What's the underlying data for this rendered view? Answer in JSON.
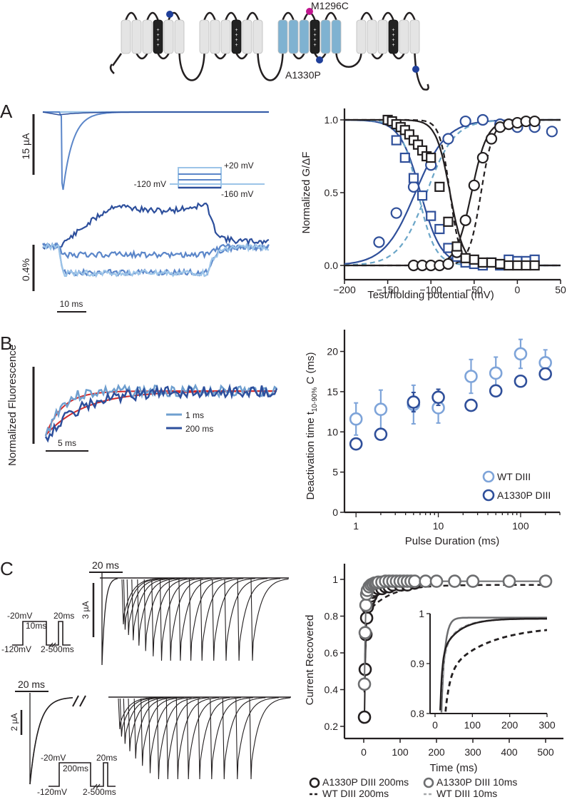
{
  "figure": {
    "panel_labels": [
      "A",
      "B",
      "C"
    ],
    "schematic": {
      "mutation_labels": [
        "M1296C",
        "A1330P"
      ],
      "colors": {
        "helix_gray": "#e4e4e4",
        "helix_blue": "#7fb2d1",
        "s4": "#222222",
        "site_blue": "#1f3f9a",
        "site_magenta": "#c0168e"
      }
    },
    "colors": {
      "light_blue": "#9cc4e8",
      "mid_blue": "#5b86c9",
      "dark_blue": "#2d4f9c",
      "teal_dash": "#6ba6c8",
      "black": "#231f20",
      "gray": "#6d6e70",
      "light_gray_dash": "#a7a9ac",
      "red_fit": "#d12a2a",
      "wt_light": "#7ea4d9",
      "a1330p_dark": "#2f4f9a"
    }
  },
  "panel_a_traces": {
    "current_scale": "15 µA",
    "fluor_scale": "0.4%",
    "time_scale": "10 ms",
    "protocol": {
      "hold": "-120 mV",
      "top": "+20 mV",
      "bottom": "-160 mV"
    }
  },
  "panel_b_traces": {
    "ylabel": "Normalized Fluorescence",
    "time_scale": "5 ms",
    "legend": [
      "1 ms",
      "200 ms"
    ]
  },
  "panel_c_traces": {
    "top": {
      "time_scale": "20 ms",
      "current_scale": "3 µA",
      "protocol": {
        "step": "-20mV",
        "step_dur": "10ms",
        "test_dur": "20ms",
        "hold": "-120mV",
        "interval": "2-500ms"
      }
    },
    "bottom": {
      "time_scale": "20 ms",
      "current_scale": "2 µA",
      "protocol": {
        "step": "-20mV",
        "step_dur": "200ms",
        "test_dur": "20ms",
        "hold": "-120mV",
        "interval": "2-500ms"
      }
    }
  },
  "chart_data": [
    {
      "id": "A-gv",
      "type": "scatter",
      "title": "",
      "xlabel": "Test/holding potential (mV)",
      "ylabel": "Normalized G/ΔF",
      "xlim": [
        -200,
        50
      ],
      "ylim": [
        0,
        1.0
      ],
      "xticks": [
        -200,
        -150,
        -100,
        -50,
        0,
        50
      ],
      "xtick_labels": [
        "−200",
        "−150",
        "−100",
        "−50",
        "0",
        "50"
      ],
      "yticks": [
        0,
        0.5,
        1.0
      ],
      "ytick_labels": [
        "0.0",
        "0.5",
        "1.0"
      ],
      "series": [
        {
          "name": "Fluorescence activation (A1330P DIII)",
          "marker": "circle",
          "color": "#2f4f9a",
          "x": [
            -160,
            -140,
            -120,
            -100,
            -80,
            -60,
            -40,
            -20,
            0,
            20,
            40
          ],
          "y": [
            0.16,
            0.36,
            0.54,
            0.69,
            0.87,
            0.99,
            1.0,
            0.97,
            0.95,
            0.95,
            0.92
          ]
        },
        {
          "name": "Fluorescence SSI (A1330P DIII)",
          "marker": "square",
          "color": "#2f4f9a",
          "x": [
            -140,
            -130,
            -120,
            -110,
            -100,
            -90,
            -80,
            -70,
            -60,
            -50,
            -40,
            -30,
            -20,
            -10,
            0,
            10,
            20
          ],
          "y": [
            0.86,
            0.74,
            0.6,
            0.48,
            0.34,
            0.25,
            0.12,
            0.06,
            0.02,
            0.01,
            0.0,
            0.02,
            0.0,
            0.04,
            0.03,
            0.03,
            0.04
          ]
        },
        {
          "name": "Conductance G-V",
          "marker": "circle",
          "color": "#231f20",
          "x": [
            -120,
            -110,
            -100,
            -90,
            -80,
            -70,
            -60,
            -50,
            -40,
            -30,
            -20,
            -10,
            0,
            10,
            20
          ],
          "y": [
            0.0,
            0.0,
            0.0,
            0.0,
            0.01,
            0.09,
            0.31,
            0.55,
            0.74,
            0.87,
            0.95,
            0.97,
            0.98,
            0.99,
            0.99
          ]
        },
        {
          "name": "Steady-state inactivation",
          "marker": "square",
          "color": "#231f20",
          "x": [
            -150,
            -145,
            -140,
            -135,
            -130,
            -125,
            -120,
            -115,
            -110,
            -105,
            -100,
            -90,
            -80,
            -70,
            -60,
            -50,
            -40,
            -30,
            -20,
            -10,
            0,
            10,
            20
          ],
          "y": [
            1.0,
            0.99,
            0.97,
            0.95,
            0.93,
            0.9,
            0.86,
            0.83,
            0.79,
            0.75,
            0.74,
            0.54,
            0.3,
            0.13,
            0.05,
            0.04,
            0.02,
            0.02,
            0.01,
            0.0,
            0.0,
            0.0,
            0.0
          ]
        }
      ],
      "fits": [
        {
          "name": "A1330P fluorescence activation fit",
          "style": "solid",
          "color": "#2f4f9a",
          "v_half": -118,
          "k": 18,
          "direction": "rising"
        },
        {
          "name": "A1330P fluorescence SSI fit",
          "style": "solid",
          "color": "#2f4f9a",
          "v_half": -112,
          "k": 12,
          "direction": "falling"
        },
        {
          "name": "WT fluorescence activation fit",
          "style": "dashed",
          "color": "#6ba6c8",
          "v_half": -105,
          "k": 16,
          "direction": "rising"
        },
        {
          "name": "WT fluorescence SSI fit",
          "style": "dashed",
          "color": "#6ba6c8",
          "v_half": -115,
          "k": 10,
          "direction": "falling"
        },
        {
          "name": "A1330P G-V fit",
          "style": "solid",
          "color": "#231f20",
          "v_half": -53,
          "k": 9,
          "direction": "rising"
        },
        {
          "name": "A1330P SSI fit",
          "style": "solid",
          "color": "#231f20",
          "v_half": -78,
          "k": 8,
          "direction": "falling"
        },
        {
          "name": "WT G-V fit",
          "style": "dashed",
          "color": "#231f20",
          "v_half": -42,
          "k": 7,
          "direction": "rising"
        },
        {
          "name": "WT SSI fit",
          "style": "dashed",
          "color": "#231f20",
          "v_half": -78,
          "k": 6,
          "direction": "falling"
        }
      ]
    },
    {
      "id": "B-deact",
      "type": "scatter",
      "xscale": "log",
      "xlabel": "Pulse Duration (ms)",
      "ylabel": "Deactivation time t10-90% C (ms)",
      "ylabel_main": "Deactivation time t",
      "ylabel_sub": "10-90%",
      "ylabel_tail": " C (ms)",
      "xlim": [
        0.8,
        300
      ],
      "ylim": [
        0,
        22
      ],
      "xticks": [
        1,
        10,
        100
      ],
      "xtick_labels": [
        "1",
        "10",
        "100"
      ],
      "yticks": [
        0,
        5,
        10,
        15,
        20
      ],
      "ytick_labels": [
        "0",
        "5",
        "10",
        "15",
        "20"
      ],
      "legend": [
        "WT DIII",
        "A1330P DIII"
      ],
      "legend_position": "bottom-right",
      "series": [
        {
          "name": "WT DIII",
          "color": "#7ea4d9",
          "x": [
            1,
            2,
            5,
            10,
            25,
            50,
            100,
            200
          ],
          "y": [
            11.6,
            12.8,
            13.4,
            13.0,
            16.9,
            17.3,
            19.7,
            18.6
          ],
          "err": [
            2.0,
            2.4,
            2.4,
            1.9,
            2.1,
            2.0,
            1.8,
            1.6
          ]
        },
        {
          "name": "A1330P DIII",
          "color": "#2f4f9a",
          "x": [
            1,
            2,
            5,
            10,
            25,
            50,
            100,
            200
          ],
          "y": [
            8.5,
            9.7,
            13.7,
            14.3,
            13.3,
            15.1,
            16.3,
            17.2
          ],
          "err": [
            0,
            0,
            1.2,
            1.0,
            0,
            0,
            0,
            0
          ]
        }
      ]
    },
    {
      "id": "C-recovery",
      "type": "line",
      "xlabel": "Time (ms)",
      "ylabel": "Current Recovered",
      "xlim": [
        -20,
        540
      ],
      "ylim": [
        0.1,
        1.1
      ],
      "xticks": [
        0,
        100,
        200,
        300,
        400,
        500
      ],
      "xtick_labels": [
        "0",
        "100",
        "200",
        "300",
        "400",
        "500"
      ],
      "yticks": [
        0.2,
        0.4,
        0.6,
        0.8,
        1.0
      ],
      "ytick_labels": [
        "0.2",
        "0.4",
        "0.6",
        "0.8",
        "1"
      ],
      "legend": [
        "A1330P DIII 200ms",
        "A1330P DIII 10ms",
        "WT DIII 200ms",
        "WT DIII 10ms"
      ],
      "legend_position": "below",
      "series": [
        {
          "name": "A1330P DIII 200ms",
          "marker": "circle",
          "color": "#231f20",
          "x": [
            2,
            4,
            6,
            8,
            10,
            15,
            20,
            25,
            30,
            40,
            50,
            60,
            70,
            80,
            100,
            120,
            140
          ],
          "y": [
            0.25,
            0.51,
            0.7,
            0.79,
            0.85,
            0.89,
            0.91,
            0.93,
            0.94,
            0.95,
            0.95,
            0.96,
            0.96,
            0.97,
            0.97,
            0.97,
            0.98
          ]
        },
        {
          "name": "A1330P DIII 10ms",
          "marker": "circle",
          "color": "#6d6e70",
          "x": [
            2,
            4,
            6,
            8,
            10,
            15,
            20,
            25,
            30,
            35,
            40,
            50,
            60,
            70,
            80,
            90,
            100,
            110,
            120,
            130,
            140,
            170,
            200,
            250,
            300,
            400,
            500
          ],
          "y": [
            0.43,
            0.71,
            0.86,
            0.92,
            0.94,
            0.96,
            0.97,
            0.975,
            0.98,
            0.98,
            0.985,
            0.985,
            0.99,
            0.99,
            0.99,
            0.99,
            0.99,
            0.99,
            0.99,
            0.99,
            0.99,
            0.99,
            0.99,
            0.99,
            0.99,
            0.99,
            0.99
          ]
        },
        {
          "name": "WT DIII 200ms",
          "style": "dashed",
          "color": "#231f20",
          "tau": 60,
          "amp_fast": 0.8,
          "plateau": 0.97
        },
        {
          "name": "WT DIII 10ms",
          "style": "dashed",
          "color": "#a7a9ac",
          "tau": 20,
          "plateau": 0.99
        }
      ],
      "inset": {
        "xlim": [
          -10,
          300
        ],
        "ylim": [
          0.8,
          1.0
        ],
        "xticks": [
          0,
          100,
          200,
          300
        ],
        "xtick_labels": [
          "0",
          "100",
          "200",
          "300"
        ],
        "yticks": [
          0.8,
          0.9,
          1.0
        ],
        "ytick_labels": [
          "0.8",
          "0.9",
          "1"
        ]
      }
    }
  ]
}
